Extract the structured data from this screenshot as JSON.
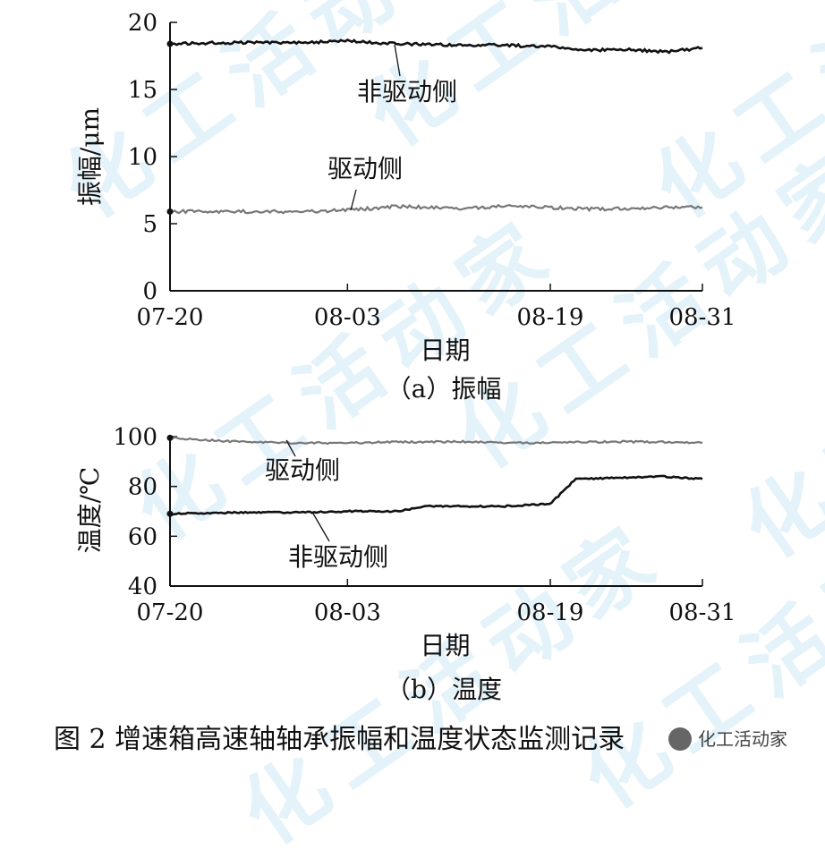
{
  "watermark": {
    "text": "化工活动家",
    "color": "#cfe8f6"
  },
  "chart_data": [
    {
      "type": "line",
      "panel_caption": "（a）振幅",
      "xlabel": "日期",
      "ylabel": "振幅/μm",
      "x_ticks": [
        "07-20",
        "08-03",
        "08-19",
        "08-31"
      ],
      "xlim": [
        "07-20",
        "08-31"
      ],
      "ylim": [
        0,
        20
      ],
      "y_ticks": [
        0,
        5,
        10,
        15,
        20
      ],
      "grid": false,
      "series": [
        {
          "name": "非驱动侧",
          "color": "#111111",
          "x": [
            "07-20",
            "07-25",
            "07-30",
            "08-03",
            "08-07",
            "08-12",
            "08-15",
            "08-19",
            "08-22",
            "08-25",
            "08-28",
            "08-31"
          ],
          "values": [
            18.4,
            18.5,
            18.5,
            18.6,
            18.4,
            18.3,
            18.3,
            18.2,
            17.9,
            18.0,
            17.8,
            18.1
          ]
        },
        {
          "name": "驱动侧",
          "color": "#777777",
          "x": [
            "07-20",
            "07-25",
            "07-30",
            "08-03",
            "08-07",
            "08-12",
            "08-15",
            "08-19",
            "08-22",
            "08-25",
            "08-28",
            "08-31"
          ],
          "values": [
            5.9,
            5.9,
            5.9,
            6.0,
            6.3,
            6.1,
            6.3,
            6.2,
            6.1,
            6.1,
            6.2,
            6.2
          ]
        }
      ]
    },
    {
      "type": "line",
      "panel_caption": "（b）温度",
      "xlabel": "日期",
      "ylabel": "温度/℃",
      "x_ticks": [
        "07-20",
        "08-03",
        "08-19",
        "08-31"
      ],
      "xlim": [
        "07-20",
        "08-31"
      ],
      "ylim": [
        40,
        100
      ],
      "y_ticks": [
        40,
        60,
        80,
        100
      ],
      "grid": false,
      "series": [
        {
          "name": "驱动侧",
          "color": "#777777",
          "x": [
            "07-20",
            "07-25",
            "07-30",
            "08-03",
            "08-07",
            "08-12",
            "08-15",
            "08-19",
            "08-22",
            "08-25",
            "08-28",
            "08-31"
          ],
          "values": [
            99.5,
            98.0,
            97.5,
            97.5,
            97.8,
            98.0,
            97.5,
            97.5,
            97.8,
            98.0,
            97.8,
            97.5
          ]
        },
        {
          "name": "非驱动侧",
          "color": "#111111",
          "x": [
            "07-20",
            "07-25",
            "07-30",
            "08-03",
            "08-07",
            "08-09",
            "08-12",
            "08-15",
            "08-19",
            "08-21",
            "08-25",
            "08-28",
            "08-31"
          ],
          "values": [
            69.0,
            69.5,
            69.5,
            70.0,
            70.0,
            72.0,
            72.0,
            72.0,
            73.0,
            83.0,
            83.5,
            84.0,
            83.0
          ]
        }
      ]
    }
  ],
  "figure_caption": "图 2   增速箱高速轴轴承振幅和温度状态监测记录",
  "brand_badge": "化工活动家"
}
